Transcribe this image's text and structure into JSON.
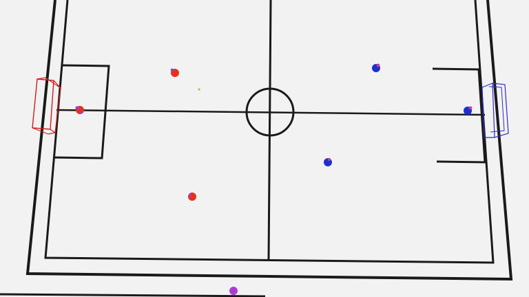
{
  "scene": {
    "type": "robot-soccer-simulation",
    "camera": "elevated-perspective"
  },
  "colors": {
    "background": "#f2f2f2",
    "field_lines": "#1a1a1a",
    "red_team": "#e8311a",
    "red_team_marker": "#9b3fd1",
    "blue_team": "#1b2fd6",
    "blue_team_marker": "#d23a8a",
    "red_goal": "#d11a1a",
    "blue_goal": "#2a2ad0",
    "ball": "#b6c23a",
    "spare_robot": "#b23ad6"
  },
  "field": {
    "center_circle": true,
    "halfway_line": true,
    "penalty_boxes": 2
  },
  "goals": [
    {
      "team": "red",
      "side": "left"
    },
    {
      "team": "blue",
      "side": "right"
    }
  ],
  "robots": [
    {
      "team": "red",
      "role": "goalkeeper",
      "icon": "red-robot-icon"
    },
    {
      "team": "red",
      "role": "player",
      "icon": "red-robot-icon"
    },
    {
      "team": "red",
      "role": "player",
      "icon": "red-robot-icon"
    },
    {
      "team": "blue",
      "role": "goalkeeper",
      "icon": "blue-robot-icon"
    },
    {
      "team": "blue",
      "role": "player",
      "icon": "blue-robot-icon"
    },
    {
      "team": "blue",
      "role": "player",
      "icon": "blue-robot-icon"
    }
  ],
  "ball": {
    "icon": "ball-icon"
  },
  "spare_robot": {
    "icon": "spare-robot-icon"
  }
}
